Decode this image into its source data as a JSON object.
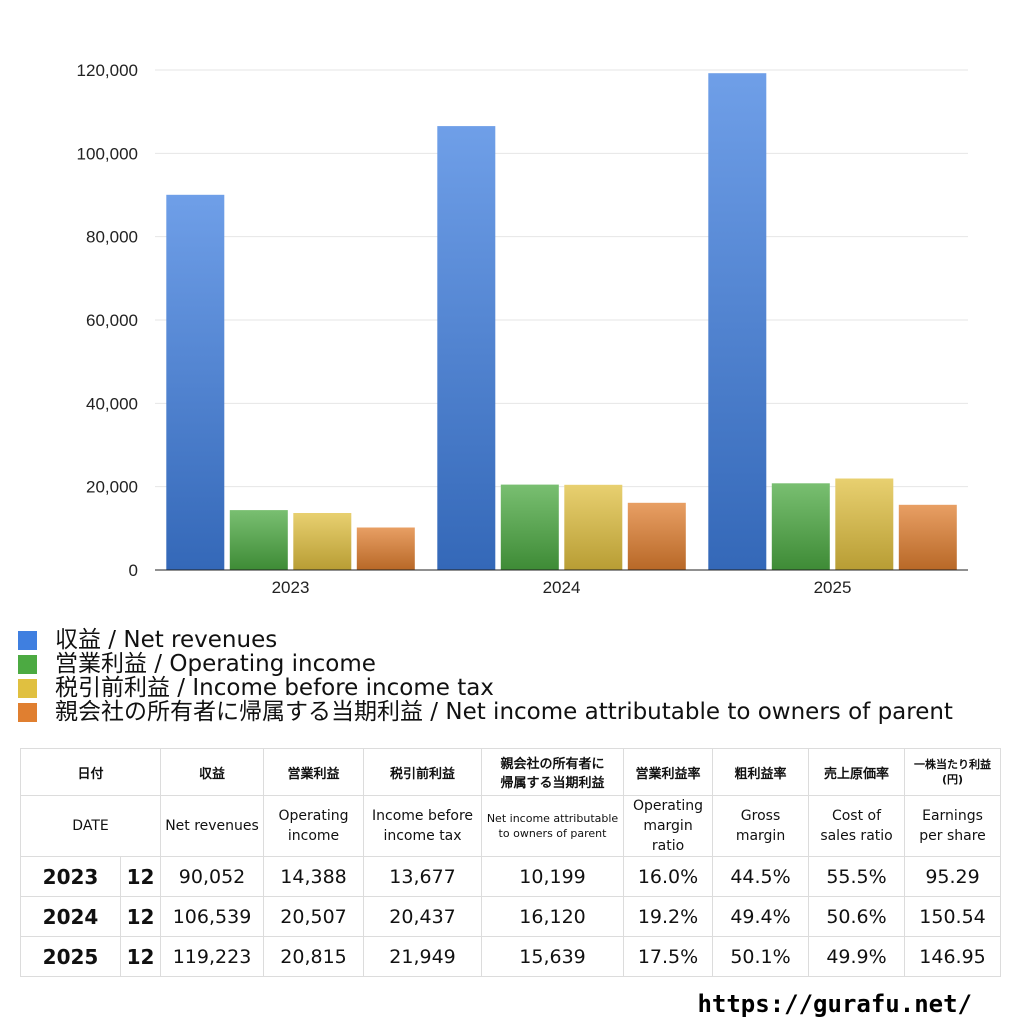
{
  "chart_data": {
    "type": "bar",
    "categories": [
      "2023",
      "2024",
      "2025"
    ],
    "series": [
      {
        "name": "収益 / Net revenues",
        "values": [
          90052,
          106539,
          119223
        ],
        "color": "#3f7fe0"
      },
      {
        "name": "営業利益 / Operating income",
        "values": [
          14388,
          20507,
          20815
        ],
        "color": "#4caa42"
      },
      {
        "name": "税引前利益 / Income before income tax",
        "values": [
          13677,
          20437,
          21949
        ],
        "color": "#e0c040"
      },
      {
        "name": "親会社の所有者に帰属する当期利益 / Net income attributable to owners of parent",
        "values": [
          10199,
          16120,
          15639
        ],
        "color": "#e07f30"
      }
    ],
    "y_ticks": [
      "0",
      "20,000",
      "40,000",
      "60,000",
      "80,000",
      "100,000",
      "120,000"
    ],
    "ylim": [
      0,
      120000
    ],
    "grid": true,
    "legend_position": "bottom"
  },
  "table": {
    "header_jp": [
      "日付",
      "収益",
      "営業利益",
      "税引前利益",
      "親会社の所有者に\n帰属する当期利益",
      "営業利益率",
      "粗利益率",
      "売上原価率",
      "一株当たり利益\n(円)"
    ],
    "header_en": [
      "DATE",
      "Net revenues",
      "Operating\nincome",
      "Income before\nincome tax",
      "Net income attributable\nto owners of parent",
      "Operating\nmargin\nratio",
      "Gross\nmargin",
      "Cost of\nsales ratio",
      "Earnings\nper share"
    ],
    "rows": [
      {
        "year": "2023",
        "month": "12",
        "values": [
          "90,052",
          "14,388",
          "13,677",
          "10,199",
          "16.0%",
          "44.5%",
          "55.5%",
          "95.29"
        ]
      },
      {
        "year": "2024",
        "month": "12",
        "values": [
          "106,539",
          "20,507",
          "20,437",
          "16,120",
          "19.2%",
          "49.4%",
          "50.6%",
          "150.54"
        ]
      },
      {
        "year": "2025",
        "month": "12",
        "values": [
          "119,223",
          "20,815",
          "21,949",
          "15,639",
          "17.5%",
          "50.1%",
          "49.9%",
          "146.95"
        ]
      }
    ]
  },
  "site_url": "https://gurafu.net/"
}
